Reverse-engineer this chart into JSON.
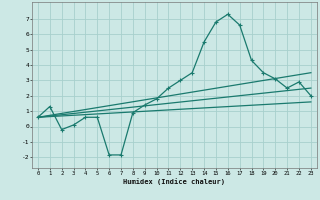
{
  "title": "",
  "xlabel": "Humidex (Indice chaleur)",
  "background_color": "#cce8e5",
  "grid_color": "#a8d0cc",
  "line_color": "#1a7a6e",
  "xlim": [
    -0.5,
    23.5
  ],
  "ylim": [
    -2.7,
    8.1
  ],
  "xticks": [
    0,
    1,
    2,
    3,
    4,
    5,
    6,
    7,
    8,
    9,
    10,
    11,
    12,
    13,
    14,
    15,
    16,
    17,
    18,
    19,
    20,
    21,
    22,
    23
  ],
  "yticks": [
    -2,
    -1,
    0,
    1,
    2,
    3,
    4,
    5,
    6,
    7
  ],
  "curve1_x": [
    0,
    1,
    2,
    3,
    4,
    5,
    6,
    7,
    8,
    9,
    10,
    11,
    12,
    13,
    14,
    15,
    16,
    17,
    18,
    19,
    20,
    21,
    22,
    23
  ],
  "curve1_y": [
    0.6,
    1.3,
    -0.2,
    0.1,
    0.6,
    0.6,
    -1.85,
    -1.85,
    0.9,
    1.4,
    1.8,
    2.5,
    3.0,
    3.5,
    5.5,
    6.8,
    7.3,
    6.6,
    4.3,
    3.5,
    3.1,
    2.5,
    2.9,
    2.0
  ],
  "curve2_x": [
    0,
    23
  ],
  "curve2_y": [
    0.6,
    3.5
  ],
  "curve3_x": [
    0,
    23
  ],
  "curve3_y": [
    0.6,
    2.5
  ],
  "curve4_x": [
    0,
    23
  ],
  "curve4_y": [
    0.6,
    1.6
  ]
}
